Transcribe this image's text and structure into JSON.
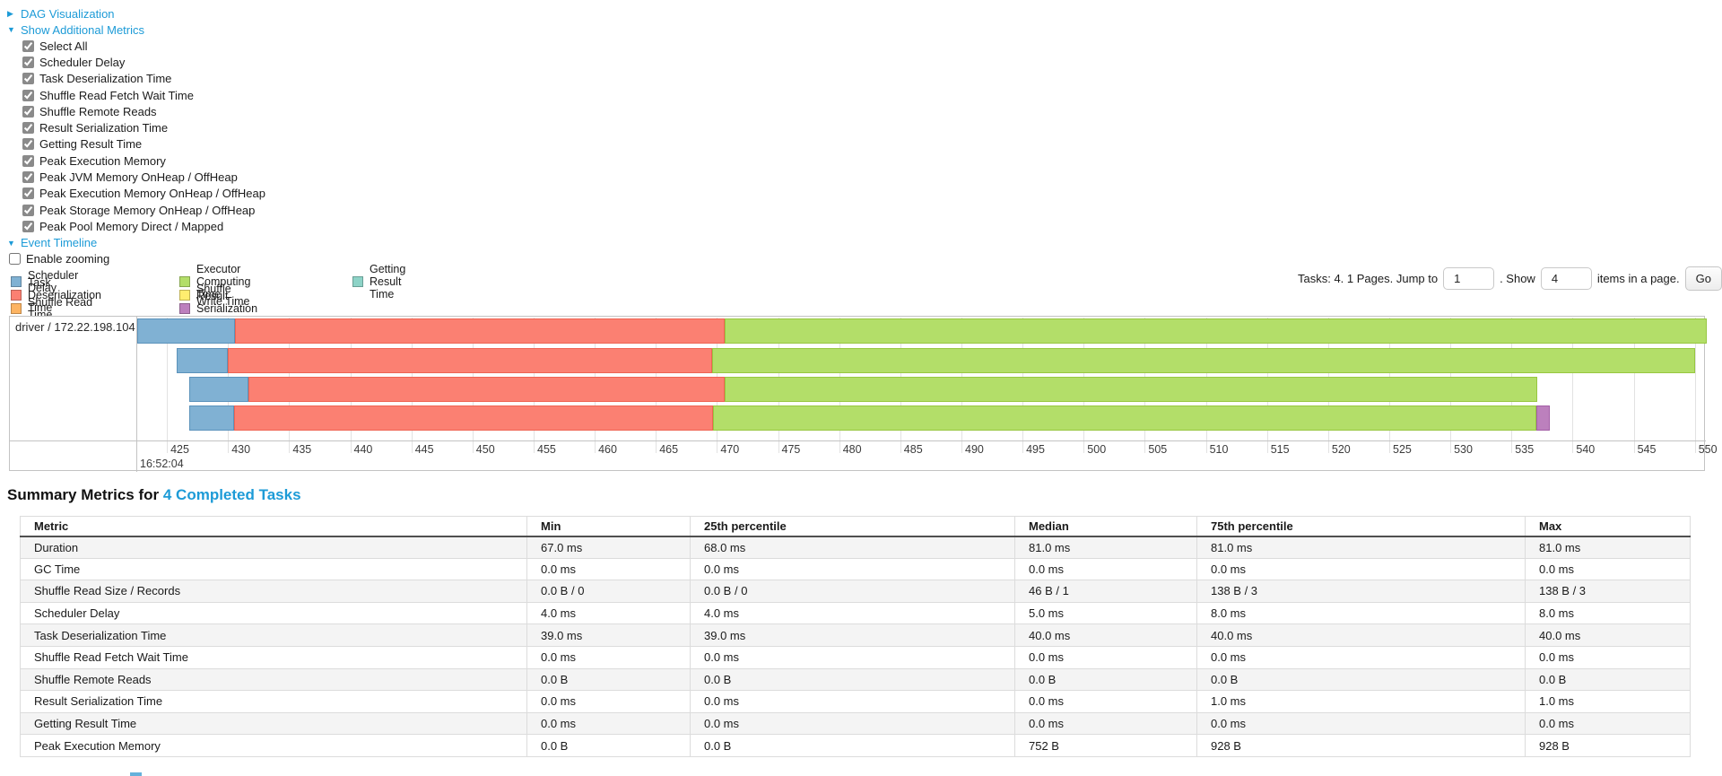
{
  "toggles": {
    "dag": "DAG Visualization",
    "metrics": "Show Additional Metrics",
    "timeline": "Event Timeline"
  },
  "metrics_panel": {
    "items": [
      "Select All",
      "Scheduler Delay",
      "Task Deserialization Time",
      "Shuffle Read Fetch Wait Time",
      "Shuffle Remote Reads",
      "Result Serialization Time",
      "Getting Result Time",
      "Peak Execution Memory",
      "Peak JVM Memory OnHeap / OffHeap",
      "Peak Execution Memory OnHeap / OffHeap",
      "Peak Storage Memory OnHeap / OffHeap",
      "Peak Pool Memory Direct / Mapped"
    ]
  },
  "enable_zooming_label": "Enable zooming",
  "legend": {
    "columns": [
      {
        "items": [
          {
            "label": "Scheduler Delay",
            "color": "#80B1D3"
          },
          {
            "label": "Task Deserialization Time",
            "color": "#FB8072"
          },
          {
            "label": "Shuffle Read Time",
            "color": "#FDB462"
          }
        ]
      },
      {
        "items": [
          {
            "label": "Executor Computing Time",
            "color": "#B3DE69"
          },
          {
            "label": "Shuffle Write Time",
            "color": "#FFED6F"
          },
          {
            "label": "Result Serialization Time",
            "color": "#BC80BD"
          }
        ]
      },
      {
        "items": [
          {
            "label": "Getting Result Time",
            "color": "#8DD3C7"
          }
        ]
      }
    ]
  },
  "pagination": {
    "prefix": "Tasks: 4. 1 Pages. Jump to",
    "jump_value": "1",
    "show_label": ". Show",
    "show_value": "4",
    "suffix": "items in a page.",
    "go_label": "Go"
  },
  "chart_data": {
    "type": "timeline-gantt",
    "group_label": "driver / 172.22.198.104",
    "axis": {
      "first_tick": 425,
      "last_tick": 550,
      "tick_step": 5,
      "value_at_left_edge": 422.5,
      "value_at_right_edge": 550.9,
      "time_label": "16:52:04",
      "grid": true
    },
    "segment_colors": {
      "scheduler_delay": {
        "fill": "#80B1D3",
        "border": "#5b92bb"
      },
      "task_deserialization": {
        "fill": "#FB8072",
        "border": "#ef6352"
      },
      "executor_computing": {
        "fill": "#B3DE69",
        "border": "#97c740"
      },
      "result_serialization": {
        "fill": "#BC80BD",
        "border": "#a35ea6"
      }
    },
    "tasks": [
      {
        "start": 422.6,
        "segments": [
          {
            "type": "scheduler_delay",
            "end": 430.6
          },
          {
            "type": "task_deserialization",
            "end": 470.6
          },
          {
            "type": "executor_computing",
            "end": 551.0
          }
        ]
      },
      {
        "start": 425.8,
        "segments": [
          {
            "type": "scheduler_delay",
            "end": 430.0
          },
          {
            "type": "task_deserialization",
            "end": 469.6
          },
          {
            "type": "executor_computing",
            "end": 550.0
          }
        ]
      },
      {
        "start": 426.8,
        "segments": [
          {
            "type": "scheduler_delay",
            "end": 431.7
          },
          {
            "type": "task_deserialization",
            "end": 470.6
          },
          {
            "type": "executor_computing",
            "end": 537.1
          }
        ]
      },
      {
        "start": 426.8,
        "segments": [
          {
            "type": "scheduler_delay",
            "end": 430.5
          },
          {
            "type": "task_deserialization",
            "end": 469.7
          },
          {
            "type": "executor_computing",
            "end": 537.0
          },
          {
            "type": "result_serialization",
            "end": 538.1
          }
        ]
      }
    ]
  },
  "summary": {
    "title_prefix": "Summary Metrics for",
    "title_link": "4 Completed Tasks",
    "table": {
      "headers": [
        "Metric",
        "Min",
        "25th percentile",
        "Median",
        "75th percentile",
        "Max"
      ],
      "rows": [
        [
          "Duration",
          "67.0 ms",
          "68.0 ms",
          "81.0 ms",
          "81.0 ms",
          "81.0 ms"
        ],
        [
          "GC Time",
          "0.0 ms",
          "0.0 ms",
          "0.0 ms",
          "0.0 ms",
          "0.0 ms"
        ],
        [
          "Shuffle Read Size / Records",
          "0.0 B / 0",
          "0.0 B / 0",
          "46 B / 1",
          "138 B / 3",
          "138 B / 3"
        ],
        [
          "Scheduler Delay",
          "4.0 ms",
          "4.0 ms",
          "5.0 ms",
          "8.0 ms",
          "8.0 ms"
        ],
        [
          "Task Deserialization Time",
          "39.0 ms",
          "39.0 ms",
          "40.0 ms",
          "40.0 ms",
          "40.0 ms"
        ],
        [
          "Shuffle Read Fetch Wait Time",
          "0.0 ms",
          "0.0 ms",
          "0.0 ms",
          "0.0 ms",
          "0.0 ms"
        ],
        [
          "Shuffle Remote Reads",
          "0.0 B",
          "0.0 B",
          "0.0 B",
          "0.0 B",
          "0.0 B"
        ],
        [
          "Result Serialization Time",
          "0.0 ms",
          "0.0 ms",
          "0.0 ms",
          "1.0 ms",
          "1.0 ms"
        ],
        [
          "Getting Result Time",
          "0.0 ms",
          "0.0 ms",
          "0.0 ms",
          "0.0 ms",
          "0.0 ms"
        ],
        [
          "Peak Execution Memory",
          "0.0 B",
          "0.0 B",
          "752 B",
          "928 B",
          "928 B"
        ]
      ]
    }
  }
}
